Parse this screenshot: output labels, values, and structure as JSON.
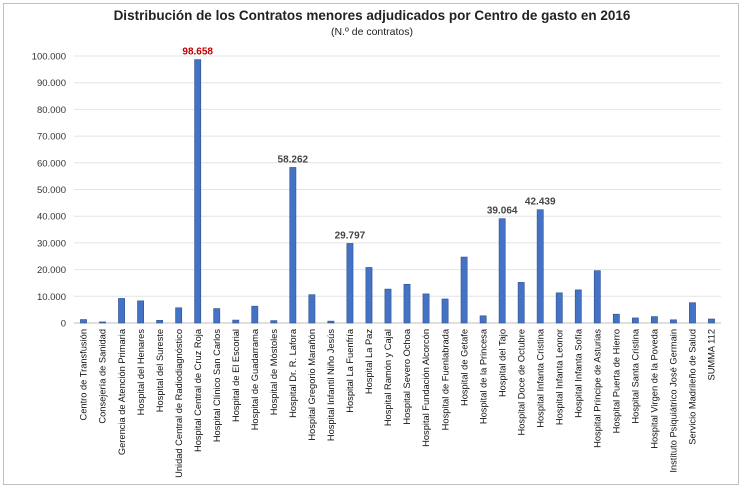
{
  "chart_data": {
    "type": "bar",
    "title": "Distribución de los Contratos menores adjudicados por Centro de gasto en 2016",
    "subtitle": "(N.º de contratos)",
    "xlabel": "",
    "ylabel": "",
    "ylim": [
      0,
      100000
    ],
    "yticks": [
      "0",
      "10.000",
      "20.000",
      "30.000",
      "40.000",
      "50.000",
      "60.000",
      "70.000",
      "80.000",
      "90.000",
      "100.000"
    ],
    "grid": true,
    "legend": "none",
    "bar_color": "#4472c4",
    "categories": [
      "Centro de Transfusión",
      "Consejería de Sanidad",
      "Gerencia de Atención Primaria",
      "Hospital del Henares",
      "Hospital del Sureste",
      "Unidad Central de Radiodiagnóstico",
      "Hospital Central de Cruz Roja",
      "Hospital Clínico San Carlos",
      "Hospital de El Escorial",
      "Hospital de Guadarrama",
      "Hospital de Móstoles",
      "Hospital Dr. R. Lafora",
      "Hospital Gregorio Marañón",
      "Hospital Infantil Niño Jesús",
      "Hospital La Fuenfría",
      "Hospital La Paz",
      "Hospital Ramón y Cajal",
      "Hospital Severo Ochoa",
      "Hospital Fundación Alcorcón",
      "Hospital de Fuenlabrada",
      "Hospital de Getafe",
      "Hospital de la Princesa",
      "Hospital del Tajo",
      "Hospital Doce de Octubre",
      "Hospital Infanta Cristina",
      "Hospital Infanta Leonor",
      "Hospital Infanta Sofía",
      "Hospital Príncipe de Asturias",
      "Hospital Puerta de Hierro",
      "Hospital Santa Cristina",
      "Hospital Virgen de la Poveda",
      "Instituto Psiquiátrico José Germain",
      "Servicio Madrileño de Salud",
      "SUMMA 112"
    ],
    "values": [
      1300,
      400,
      9200,
      8300,
      1000,
      5700,
      98658,
      5400,
      1100,
      6300,
      900,
      58262,
      10600,
      700,
      29797,
      20800,
      12700,
      14500,
      10900,
      9000,
      24700,
      2700,
      39064,
      15200,
      42439,
      11300,
      12400,
      19600,
      3300,
      1900,
      2400,
      1200,
      7600,
      1500
    ],
    "data_labels": [
      {
        "category": "Hospital Central de Cruz Roja",
        "text": "98.658",
        "color": "#c00000"
      },
      {
        "category": "Hospital Dr. R. Lafora",
        "text": "58.262",
        "color": "#444444"
      },
      {
        "category": "Hospital La Fuenfría",
        "text": "29.797",
        "color": "#444444"
      },
      {
        "category": "Hospital del Tajo",
        "text": "39.064",
        "color": "#444444"
      },
      {
        "category": "Hospital Infanta Cristina",
        "text": "42.439",
        "color": "#444444"
      }
    ]
  }
}
